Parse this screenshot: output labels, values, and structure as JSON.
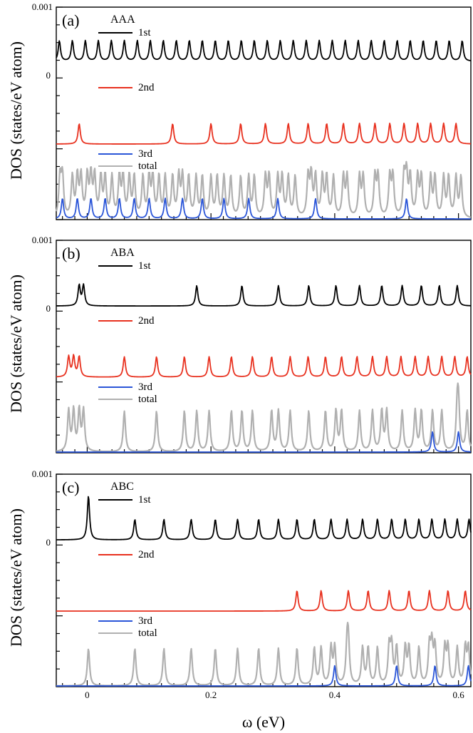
{
  "xlabel": "ω (eV)",
  "ylabel": "DOS (states/eV atom)",
  "x_range": [
    -0.05,
    0.62
  ],
  "x_ticks": [
    0,
    0.2,
    0.4,
    0.6
  ],
  "x_tick_labels": [
    "0",
    "0.2",
    "0.4",
    "0.6"
  ],
  "colors": {
    "1st": "#000000",
    "2nd": "#e8311f",
    "3rd": "#2a55d8",
    "total": "#b0b0b0"
  },
  "chart_data": [
    {
      "type": "line",
      "panel_label": "(a)",
      "title": "AAA",
      "y_tick_labels": {
        "top": "0.001",
        "zero": "0"
      },
      "legend": [
        "1st",
        "2nd",
        "3rd",
        "total"
      ],
      "series": [
        {
          "name": "1st",
          "peaks": [
            -0.045,
            -0.024,
            -0.003,
            0.018,
            0.039,
            0.06,
            0.081,
            0.102,
            0.123,
            0.144,
            0.165,
            0.186,
            0.207,
            0.228,
            0.249,
            0.27,
            0.291,
            0.312,
            0.333,
            0.354,
            0.375,
            0.396,
            0.417,
            0.438,
            0.459,
            0.48,
            0.501,
            0.522,
            0.543,
            0.564,
            0.585,
            0.606
          ],
          "offset": 0.2,
          "height": 0.3
        },
        {
          "name": "2nd",
          "peaks": [
            -0.013,
            0.138,
            0.2,
            0.248,
            0.288,
            0.325,
            0.357,
            0.387,
            0.414,
            0.44,
            0.465,
            0.489,
            0.512,
            0.534,
            0.555,
            0.576,
            0.596
          ],
          "height": 0.3
        },
        {
          "name": "3rd",
          "peaks": [
            -0.04,
            -0.016,
            0.006,
            0.029,
            0.052,
            0.076,
            0.1,
            0.126,
            0.154,
            0.186,
            0.221,
            0.261,
            0.308,
            0.369,
            0.516
          ],
          "height": 0.3
        },
        {
          "name": "total",
          "peaks": [
            -0.044,
            -0.04,
            -0.024,
            -0.016,
            -0.01,
            0.0,
            0.006,
            0.012,
            0.022,
            0.029,
            0.04,
            0.052,
            0.058,
            0.068,
            0.076,
            0.09,
            0.1,
            0.106,
            0.116,
            0.126,
            0.138,
            0.148,
            0.154,
            0.164,
            0.176,
            0.186,
            0.2,
            0.21,
            0.221,
            0.232,
            0.248,
            0.261,
            0.27,
            0.288,
            0.294,
            0.308,
            0.315,
            0.325,
            0.336,
            0.357,
            0.362,
            0.369,
            0.38,
            0.387,
            0.398,
            0.414,
            0.42,
            0.44,
            0.446,
            0.465,
            0.47,
            0.489,
            0.494,
            0.512,
            0.516,
            0.522,
            0.534,
            0.54,
            0.555,
            0.562,
            0.576,
            0.584,
            0.596,
            0.604
          ],
          "height": 0.6
        }
      ]
    },
    {
      "type": "line",
      "panel_label": "(b)",
      "title": "ABA",
      "y_tick_labels": {
        "top": "0.001",
        "zero": "0"
      },
      "legend": [
        "1st",
        "2nd",
        "3rd",
        "total"
      ],
      "series": [
        {
          "name": "1st",
          "peaks": [
            -0.013,
            -0.006,
            0.177,
            0.25,
            0.309,
            0.358,
            0.402,
            0.44,
            0.476,
            0.509,
            0.54,
            0.569,
            0.598
          ],
          "height": 0.3
        },
        {
          "name": "2nd",
          "peaks": [
            -0.03,
            -0.022,
            -0.013,
            0.06,
            0.112,
            0.157,
            0.197,
            0.233,
            0.267,
            0.298,
            0.328,
            0.357,
            0.385,
            0.411,
            0.436,
            0.461,
            0.484,
            0.507,
            0.53,
            0.551,
            0.573,
            0.594,
            0.614
          ],
          "height": 0.3
        },
        {
          "name": "3rd",
          "peaks": [
            0.558,
            0.6
          ],
          "height": 0.3
        },
        {
          "name": "total",
          "peaks": [
            -0.03,
            -0.022,
            -0.013,
            -0.006,
            0.06,
            0.112,
            0.157,
            0.177,
            0.197,
            0.233,
            0.25,
            0.267,
            0.298,
            0.309,
            0.328,
            0.358,
            0.385,
            0.402,
            0.411,
            0.44,
            0.461,
            0.476,
            0.484,
            0.509,
            0.53,
            0.54,
            0.558,
            0.573,
            0.598,
            0.6,
            0.614
          ],
          "height": 0.6
        }
      ]
    },
    {
      "type": "line",
      "panel_label": "(c)",
      "title": "ABC",
      "y_tick_labels": {
        "top": "0.001",
        "zero": "0"
      },
      "legend": [
        "1st",
        "2nd",
        "3rd",
        "total"
      ],
      "series": [
        {
          "name": "1st",
          "peaks": [
            0.002,
            0.077,
            0.124,
            0.168,
            0.207,
            0.243,
            0.277,
            0.309,
            0.339,
            0.367,
            0.394,
            0.42,
            0.445,
            0.469,
            0.492,
            0.514,
            0.536,
            0.557,
            0.578,
            0.598,
            0.617
          ],
          "heights": [
            0.65,
            0.3,
            0.3,
            0.3,
            0.3,
            0.3,
            0.3,
            0.3,
            0.3,
            0.3,
            0.3,
            0.3,
            0.3,
            0.3,
            0.3,
            0.3,
            0.3,
            0.3,
            0.3,
            0.3,
            0.3
          ]
        },
        {
          "name": "2nd",
          "peaks": [
            0.339,
            0.378,
            0.422,
            0.454,
            0.488,
            0.52,
            0.553,
            0.583,
            0.611
          ],
          "height": 0.3
        },
        {
          "name": "3rd",
          "peaks": [
            0.4,
            0.5,
            0.562,
            0.616
          ],
          "height": 0.3
        },
        {
          "name": "total",
          "peaks": [
            0.002,
            0.077,
            0.124,
            0.168,
            0.207,
            0.243,
            0.277,
            0.309,
            0.339,
            0.367,
            0.378,
            0.394,
            0.4,
            0.42,
            0.422,
            0.445,
            0.454,
            0.469,
            0.488,
            0.492,
            0.5,
            0.514,
            0.52,
            0.536,
            0.553,
            0.557,
            0.562,
            0.578,
            0.583,
            0.598,
            0.611,
            0.616
          ],
          "height": 0.55
        }
      ]
    }
  ]
}
